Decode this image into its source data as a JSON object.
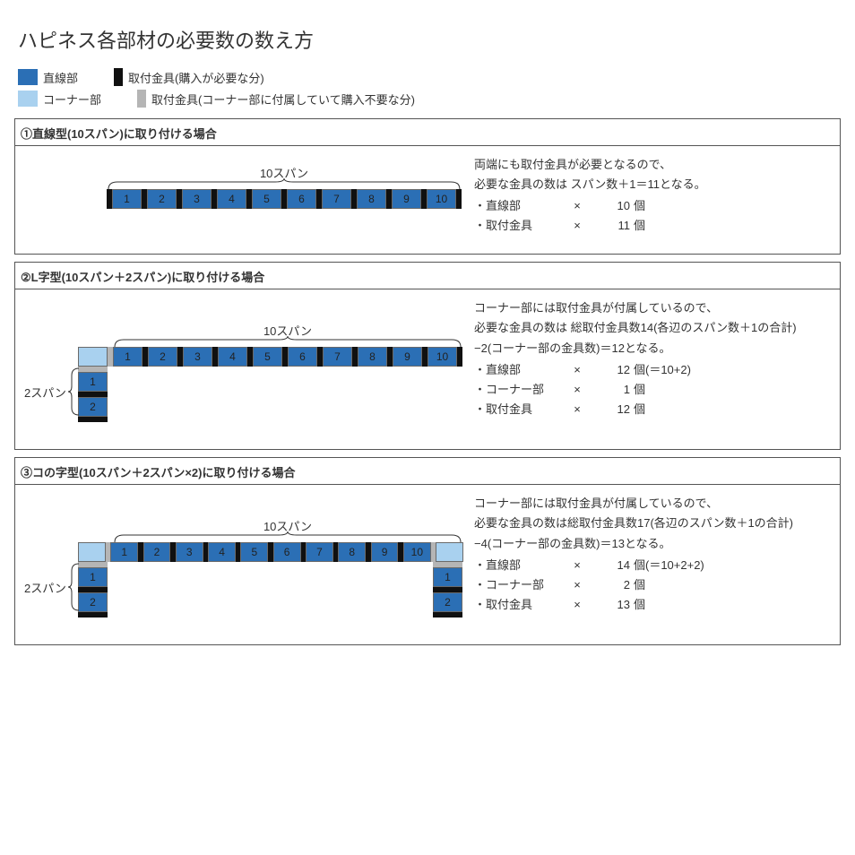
{
  "title": "ハピネス各部材の必要数の数え方",
  "colors": {
    "straight": "#2b6fb5",
    "corner": "#a9d1ef",
    "fixBuy": "#101010",
    "fixIncluded": "#b5b5b5",
    "text": "#333333",
    "border": "#555555"
  },
  "legend": {
    "straight": "直線部",
    "corner": "コーナー部",
    "fixBuy": "取付金具(購入が必要な分)",
    "fixIncluded": "取付金具(コーナー部に付属していて購入不要な分)"
  },
  "sections": [
    {
      "title": "①直線型(10スパン)に取り付ける場合",
      "braceTop": "10スパン",
      "desc1": "両端にも取付金具が必要となるので、",
      "desc2": "必要な金具の数は スパン数＋1＝11となる。",
      "items": [
        {
          "label": "・直線部",
          "mul": "×",
          "val": "10",
          "unit": "個"
        },
        {
          "label": "・取付金具",
          "mul": "×",
          "val": "11",
          "unit": "個"
        }
      ],
      "segs": [
        1,
        2,
        3,
        4,
        5,
        6,
        7,
        8,
        9,
        10
      ]
    },
    {
      "title": "②L字型(10スパン＋2スパン)に取り付ける場合",
      "braceTop": "10スパン",
      "braceLeft": "2スパン",
      "desc1": "コーナー部には取付金具が付属しているので、",
      "desc2": "必要な金具の数は 総取付金具数14(各辺のスパン数＋1の合計)",
      "desc3": "−2(コーナー部の金具数)＝12となる。",
      "items": [
        {
          "label": "・直線部",
          "mul": "×",
          "val": "12",
          "unit": "個(＝10+2)"
        },
        {
          "label": "・コーナー部",
          "mul": "×",
          "val": "1",
          "unit": "個"
        },
        {
          "label": "・取付金具",
          "mul": "×",
          "val": "12",
          "unit": "個"
        }
      ],
      "segs": [
        1,
        2,
        3,
        4,
        5,
        6,
        7,
        8,
        9,
        10
      ],
      "vsegs": [
        1,
        2
      ]
    },
    {
      "title": "③コの字型(10スパン＋2スパン×2)に取り付ける場合",
      "braceTop": "10スパン",
      "braceLeft": "2スパン",
      "desc1": "コーナー部には取付金具が付属しているので、",
      "desc2": "必要な金具の数は総取付金具数17(各辺のスパン数＋1の合計)",
      "desc3": "−4(コーナー部の金具数)＝13となる。",
      "items": [
        {
          "label": "・直線部",
          "mul": "×",
          "val": "14",
          "unit": "個(＝10+2+2)"
        },
        {
          "label": "・コーナー部",
          "mul": "×",
          "val": "2",
          "unit": "個"
        },
        {
          "label": "・取付金具",
          "mul": "×",
          "val": "13",
          "unit": "個"
        }
      ],
      "segs": [
        1,
        2,
        3,
        4,
        5,
        6,
        7,
        8,
        9,
        10
      ],
      "vsegs": [
        1,
        2
      ]
    }
  ]
}
